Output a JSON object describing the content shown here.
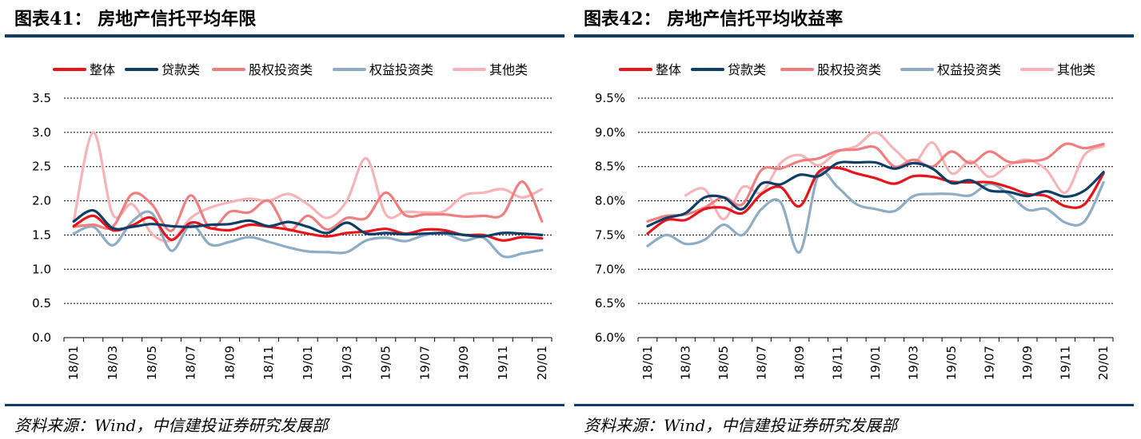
{
  "charts": [
    {
      "title": "图表41：  房地产信托平均年限",
      "source": "资料来源：Wind，中信建投证券研究发展部"
    },
    {
      "title": "图表42：  房地产信托平均收益率",
      "source": "资料来源：Wind，中信建投证券研究发展部"
    }
  ],
  "chart_data": [
    {
      "type": "line",
      "title": "图表41：  房地产信托平均年限",
      "xlabel": "",
      "ylabel": "",
      "ylim": [
        0.0,
        3.5
      ],
      "yticks": [
        "0.0",
        "0.5",
        "1.0",
        "1.5",
        "2.0",
        "2.5",
        "3.0",
        "3.5"
      ],
      "ytick_values": [
        0.0,
        0.5,
        1.0,
        1.5,
        2.0,
        2.5,
        3.0,
        3.5
      ],
      "categories": [
        "18/01",
        "18/02",
        "18/03",
        "18/04",
        "18/05",
        "18/06",
        "18/07",
        "18/08",
        "18/09",
        "18/10",
        "18/11",
        "18/12",
        "19/01",
        "19/02",
        "19/03",
        "19/04",
        "19/05",
        "19/06",
        "19/07",
        "19/08",
        "19/09",
        "19/10",
        "19/11",
        "19/12",
        "20/01"
      ],
      "xticks": [
        "18/01",
        "18/03",
        "18/05",
        "18/07",
        "18/09",
        "18/11",
        "19/01",
        "19/03",
        "19/05",
        "19/07",
        "19/09",
        "19/11",
        "20/01"
      ],
      "grid": "horizontal dashed",
      "legend_position": "top",
      "series": [
        {
          "name": "整体",
          "color": "#e8141b",
          "values": [
            1.63,
            1.78,
            1.57,
            1.64,
            1.75,
            1.43,
            1.68,
            1.6,
            1.57,
            1.65,
            1.62,
            1.58,
            1.52,
            1.48,
            1.53,
            1.55,
            1.59,
            1.52,
            1.58,
            1.57,
            1.5,
            1.5,
            1.42,
            1.47,
            1.45
          ]
        },
        {
          "name": "贷款类",
          "color": "#0d3e67",
          "values": [
            1.7,
            1.86,
            1.6,
            1.62,
            1.66,
            1.63,
            1.62,
            1.65,
            1.66,
            1.71,
            1.63,
            1.69,
            1.62,
            1.53,
            1.68,
            1.52,
            1.53,
            1.51,
            1.52,
            1.53,
            1.5,
            1.48,
            1.53,
            1.52,
            1.5
          ]
        },
        {
          "name": "股权投资类",
          "color": "#ef7f7f",
          "values": [
            1.62,
            1.65,
            1.62,
            2.1,
            1.95,
            1.56,
            2.08,
            1.6,
            1.84,
            1.83,
            2.0,
            1.57,
            1.78,
            1.58,
            1.75,
            1.75,
            2.12,
            1.79,
            1.8,
            1.8,
            1.77,
            1.78,
            1.8,
            2.28,
            1.7
          ]
        },
        {
          "name": "权益投资类",
          "color": "#8eadc4",
          "values": [
            1.52,
            1.62,
            1.35,
            1.7,
            1.82,
            1.27,
            1.65,
            1.36,
            1.4,
            1.47,
            1.4,
            1.32,
            1.26,
            1.25,
            1.25,
            1.42,
            1.46,
            1.41,
            1.5,
            1.52,
            1.42,
            1.46,
            1.19,
            1.23,
            1.28
          ]
        },
        {
          "name": "其他类",
          "color": "#f6b3b8",
          "values": [
            1.7,
            3.0,
            1.8,
            1.95,
            1.52,
            1.42,
            1.75,
            1.9,
            1.98,
            2.03,
            2.0,
            2.1,
            1.95,
            1.75,
            2.0,
            2.62,
            1.8,
            1.84,
            1.83,
            1.85,
            2.08,
            2.12,
            2.17,
            2.05,
            2.17
          ]
        }
      ]
    },
    {
      "type": "line",
      "title": "图表42：  房地产信托平均收益率",
      "xlabel": "",
      "ylabel": "",
      "ylim": [
        6.0,
        9.5
      ],
      "yticks": [
        "6.0%",
        "6.5%",
        "7.0%",
        "7.5%",
        "8.0%",
        "8.5%",
        "9.0%",
        "9.5%"
      ],
      "ytick_values": [
        6.0,
        6.5,
        7.0,
        7.5,
        8.0,
        8.5,
        9.0,
        9.5
      ],
      "categories": [
        "18/01",
        "18/02",
        "18/03",
        "18/04",
        "18/05",
        "18/06",
        "18/07",
        "18/08",
        "18/09",
        "18/10",
        "18/11",
        "18/12",
        "19/01",
        "19/02",
        "19/03",
        "19/04",
        "19/05",
        "19/06",
        "19/07",
        "19/08",
        "19/09",
        "19/10",
        "19/11",
        "19/12",
        "20/01"
      ],
      "xticks": [
        "18/01",
        "18/03",
        "18/05",
        "18/07",
        "18/09",
        "18/11",
        "19/01",
        "19/03",
        "19/05",
        "19/07",
        "19/09",
        "19/11",
        "20/01"
      ],
      "grid": "horizontal dashed",
      "legend_position": "top",
      "series": [
        {
          "name": "整体",
          "color": "#e8141b",
          "values": [
            7.52,
            7.72,
            7.72,
            7.88,
            7.9,
            7.82,
            8.1,
            8.2,
            7.92,
            8.42,
            8.48,
            8.4,
            8.33,
            8.25,
            8.36,
            8.35,
            8.28,
            8.27,
            8.27,
            8.2,
            8.1,
            8.07,
            7.92,
            7.95,
            8.4
          ]
        },
        {
          "name": "贷款类",
          "color": "#0d3e67",
          "values": [
            7.63,
            7.75,
            7.82,
            8.05,
            8.05,
            7.88,
            8.25,
            8.24,
            8.38,
            8.36,
            8.55,
            8.56,
            8.56,
            8.47,
            8.55,
            8.47,
            8.26,
            8.3,
            8.15,
            8.13,
            8.07,
            8.14,
            8.06,
            8.15,
            8.42
          ]
        },
        {
          "name": "股权投资类",
          "color": "#ef7f7f",
          "values": [
            7.7,
            7.78,
            7.8,
            7.9,
            8.05,
            7.95,
            8.45,
            8.47,
            8.58,
            8.62,
            8.73,
            8.75,
            8.78,
            8.5,
            8.6,
            8.5,
            8.72,
            8.55,
            8.72,
            8.57,
            8.58,
            8.62,
            8.83,
            8.77,
            8.83
          ]
        },
        {
          "name": "权益投资类",
          "color": "#8eadc4",
          "values": [
            7.34,
            7.5,
            7.37,
            7.43,
            7.65,
            7.5,
            7.88,
            7.98,
            7.25,
            8.38,
            8.2,
            7.95,
            7.88,
            7.85,
            8.07,
            8.1,
            8.1,
            8.08,
            8.25,
            8.1,
            7.87,
            7.88,
            7.68,
            7.7,
            8.27
          ]
        },
        {
          "name": "其他类",
          "color": "#f6b3b8",
          "values": [
            null,
            null,
            8.08,
            8.17,
            7.73,
            8.2,
            8.12,
            8.55,
            8.67,
            8.52,
            8.72,
            8.8,
            9.0,
            8.75,
            8.55,
            8.85,
            8.4,
            8.58,
            8.35,
            8.52,
            8.6,
            8.45,
            8.12,
            8.67,
            8.8
          ]
        }
      ]
    }
  ]
}
